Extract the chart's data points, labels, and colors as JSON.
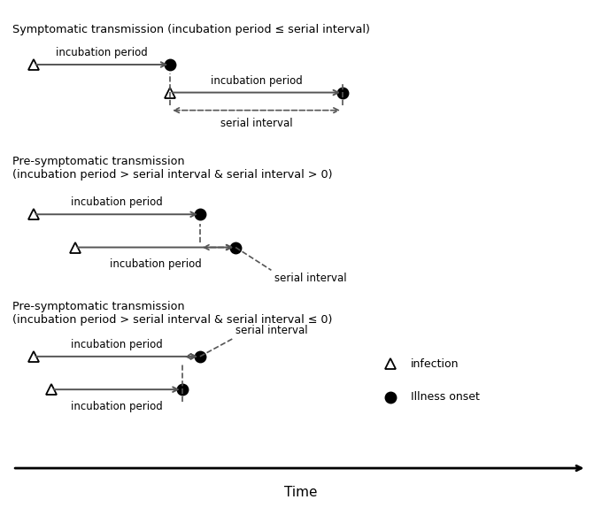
{
  "title1": "Symptomatic transmission (incubation period ≤ serial interval)",
  "title2": "Pre-symptomatic transmission\n(incubation period > serial interval & serial interval > 0)",
  "title3": "Pre-symptomatic transmission\n(incubation period > serial interval & serial interval ≤ 0)",
  "time_axis_label": "Time",
  "legend_infection": "infection",
  "legend_onset": "Illness onset",
  "bg_color": "#ffffff",
  "text_color": "#000000",
  "arrow_color": "#555555",
  "dashed_color": "#555555"
}
